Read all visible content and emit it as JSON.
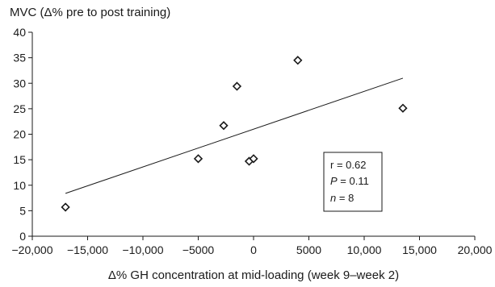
{
  "chart_data": {
    "type": "scatter",
    "ylabel": "MVC (Δ% pre to post training)",
    "xlabel": "Δ% GH concentration at mid-loading (week 9–week 2)",
    "xlim": [
      -20000,
      20000
    ],
    "ylim": [
      0,
      40
    ],
    "x_ticks": [
      -20000,
      -15000,
      -10000,
      -5000,
      0,
      5000,
      10000,
      15000,
      20000
    ],
    "x_tick_labels": [
      "−20,000",
      "−15,000",
      "−10,000",
      "−5000",
      "0",
      "5000",
      "10,000",
      "15,000",
      "20,000"
    ],
    "y_ticks": [
      0,
      5,
      10,
      15,
      20,
      25,
      30,
      35,
      40
    ],
    "y_tick_labels": [
      "0",
      "5",
      "10",
      "15",
      "20",
      "25",
      "30",
      "35",
      "40"
    ],
    "grid": false,
    "points": [
      {
        "x": -17000,
        "y": 5.7
      },
      {
        "x": -5000,
        "y": 15.2
      },
      {
        "x": -2700,
        "y": 21.7
      },
      {
        "x": -1500,
        "y": 29.4
      },
      {
        "x": -400,
        "y": 14.7
      },
      {
        "x": 0,
        "y": 15.2
      },
      {
        "x": 4000,
        "y": 34.5
      },
      {
        "x": 13500,
        "y": 25.1
      }
    ],
    "trendline": {
      "x": [
        -17000,
        13500
      ],
      "y": [
        8.4,
        31.0
      ]
    },
    "stats_box": {
      "r_label": "r",
      "r_value": "0.62",
      "p_label": "P",
      "p_value": "0.11",
      "n_label": "n",
      "n_value": "8"
    }
  }
}
